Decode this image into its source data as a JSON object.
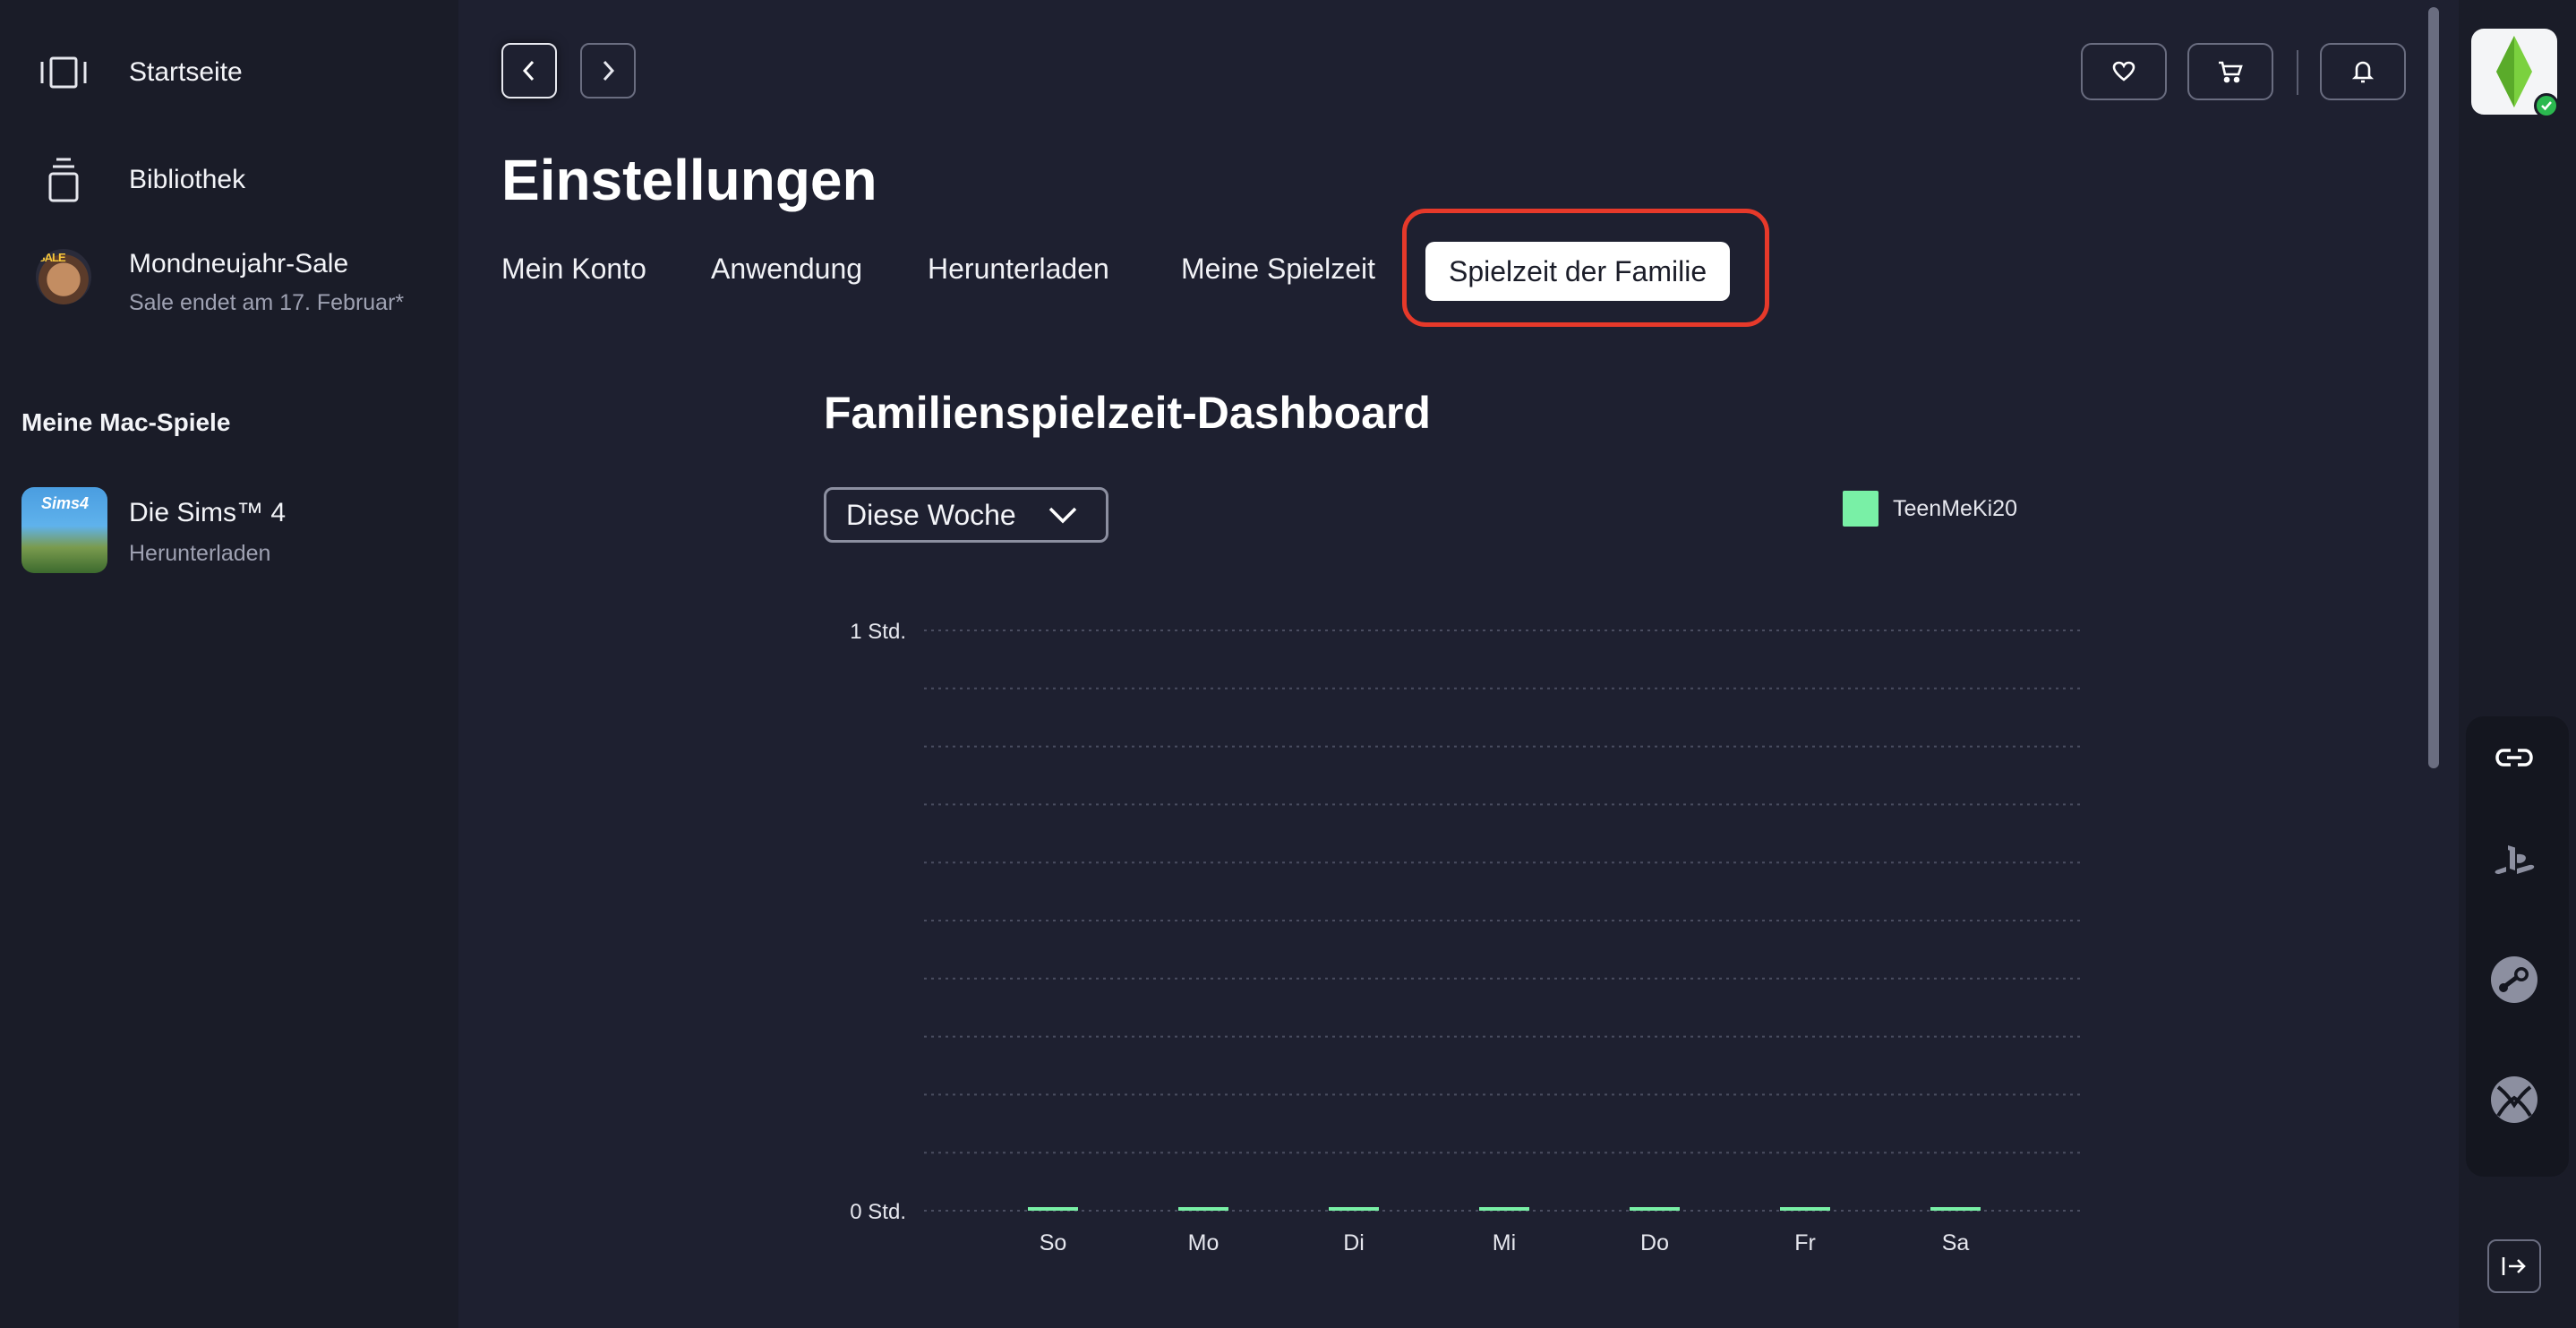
{
  "sidebar": {
    "home_label": "Startseite",
    "library_label": "Bibliothek",
    "promo": {
      "title": "Mondneujahr-Sale",
      "subtitle": "Sale endet am 17. Februar*"
    },
    "section_title": "Meine Mac-Spiele",
    "games": [
      {
        "title": "Die Sims™ 4",
        "status": "Herunterladen"
      }
    ]
  },
  "page": {
    "title": "Einstellungen"
  },
  "tabs": [
    {
      "label": "Mein Konto"
    },
    {
      "label": "Anwendung"
    },
    {
      "label": "Herunterladen"
    },
    {
      "label": "Meine Spielzeit"
    },
    {
      "label": "Spielzeit der Familie",
      "active": true
    }
  ],
  "dashboard": {
    "title": "Familienspielzeit-Dashboard",
    "period_selected": "Diese Woche"
  },
  "icons": {
    "home": "home-icon",
    "library": "library-icon",
    "back": "chevron-left-icon",
    "forward": "chevron-right-icon",
    "wishlist": "heart-icon",
    "cart": "cart-icon",
    "notifications": "bell-icon",
    "link": "link-icon",
    "playstation": "playstation-icon",
    "steam": "steam-icon",
    "xbox": "xbox-icon",
    "logout": "logout-icon"
  },
  "colors": {
    "background": "#1e2030",
    "sidebar": "#1a1c28",
    "series": "#79f0a6",
    "highlight": "#e6392a"
  },
  "chart_data": {
    "type": "bar",
    "categories": [
      "So",
      "Mo",
      "Di",
      "Mi",
      "Do",
      "Fr",
      "Sa"
    ],
    "series": [
      {
        "name": "TeenMeKi20",
        "values": [
          0,
          0,
          0,
          0,
          0,
          0,
          0
        ]
      }
    ],
    "yticks": [
      "0 Std.",
      "1 Std."
    ],
    "ylim": [
      0,
      1
    ],
    "grid": true,
    "legend": "top-right"
  }
}
